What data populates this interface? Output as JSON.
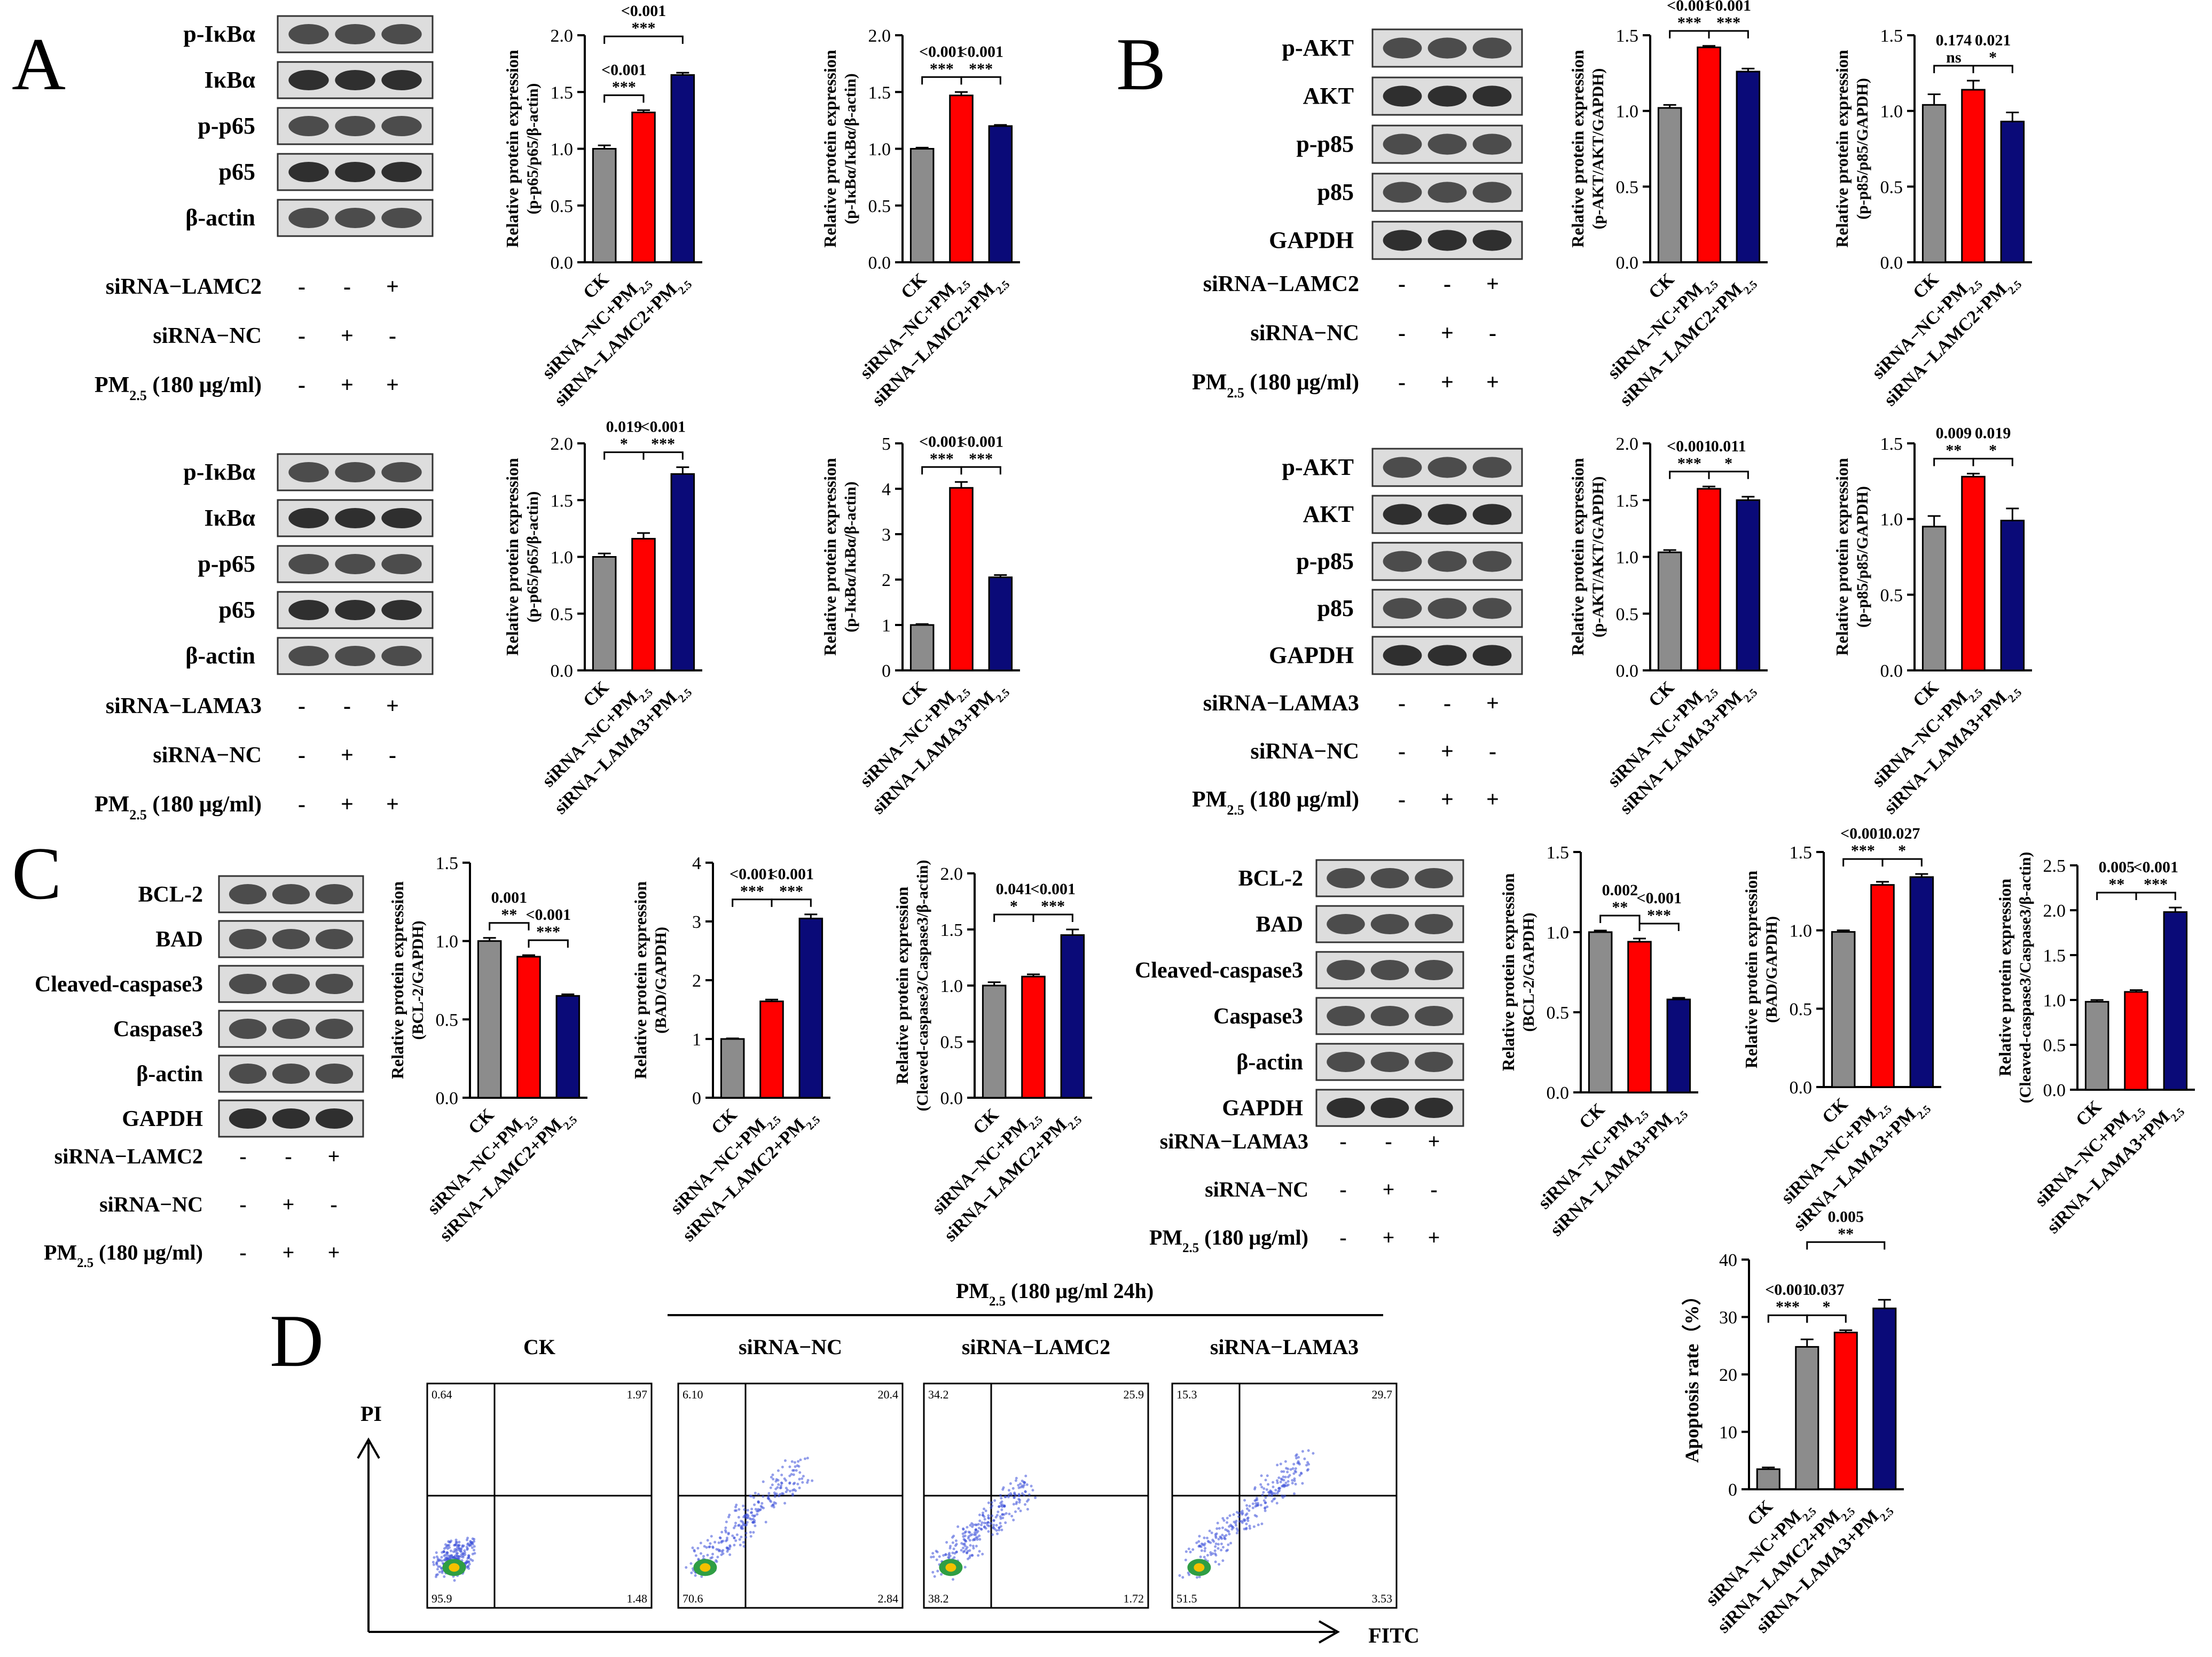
{
  "panels": {
    "A": "A",
    "B": "B",
    "C": "C",
    "D": "D"
  },
  "ylabel_prefix": "Relative protein expression",
  "categories_lamc2": [
    "CK",
    "siRNA−NC+PM2.5",
    "siRNA−LAMC2+PM2.5"
  ],
  "categories_lama3": [
    "CK",
    "siRNA−NC+PM2.5",
    "siRNA−LAMA3+PM2.5"
  ],
  "treatment_labels": {
    "lamc2": "siRNA−LAMC2",
    "lama3": "siRNA−LAMA3",
    "nc": "siRNA−NC",
    "pm": "PM2.5 (180 μg/ml)"
  },
  "signs": {
    "lamc2": [
      "-",
      "-",
      "+"
    ],
    "nc": [
      "-",
      "+",
      "-"
    ],
    "pm": [
      "-",
      "+",
      "+"
    ]
  },
  "colors": {
    "ck": "#8c8c8c",
    "nc": "#ff0000",
    "si": "#0a0a78"
  },
  "blots": {
    "A1": [
      "p-IκBα",
      "IκBα",
      "p-p65",
      "p65",
      "β-actin"
    ],
    "A2": [
      "p-IκBα",
      "IκBα",
      "p-p65",
      "p65",
      "β-actin"
    ],
    "B1": [
      "p-AKT",
      "AKT",
      "p-p85",
      "p85",
      "GAPDH"
    ],
    "B2": [
      "p-AKT",
      "AKT",
      "p-p85",
      "p85",
      "GAPDH"
    ],
    "C1": [
      "BCL-2",
      "BAD",
      "Cleaved-caspase3",
      "Caspase3",
      "β-actin",
      "GAPDH"
    ],
    "C2": [
      "BCL-2",
      "BAD",
      "Cleaved-caspase3",
      "Caspase3",
      "β-actin",
      "GAPDH"
    ]
  },
  "chart_data": [
    {
      "id": "A1a",
      "type": "bar",
      "ylabel": "(p-p65/p65/β-actin)",
      "categories_key": "lamc2",
      "values": [
        1.0,
        1.32,
        1.65
      ],
      "errors": [
        0.03,
        0.02,
        0.02
      ],
      "ylim": [
        0,
        2.0
      ],
      "ticks": [
        "0.0",
        "0.5",
        "1.0",
        "1.5",
        "2.0"
      ],
      "annotations": [
        {
          "from": 0,
          "to": 1,
          "p": "<0.001",
          "stars": "***"
        },
        {
          "from": 0,
          "to": 2,
          "p": "<0.001",
          "stars": "***"
        }
      ]
    },
    {
      "id": "A1b",
      "type": "bar",
      "ylabel": "(p-IκBα/IκBα/β-actin)",
      "categories_key": "lamc2",
      "values": [
        1.0,
        1.47,
        1.2
      ],
      "errors": [
        0.01,
        0.03,
        0.01
      ],
      "ylim": [
        0,
        2.0
      ],
      "ticks": [
        "0.0",
        "0.5",
        "1.0",
        "1.5",
        "2.0"
      ],
      "annotations": [
        {
          "from": 0,
          "to": 1,
          "p": "<0.001",
          "stars": "***"
        },
        {
          "from": 1,
          "to": 2,
          "p": "<0.001",
          "stars": "***"
        }
      ]
    },
    {
      "id": "A2a",
      "type": "bar",
      "ylabel": "(p-p65/p65/β-actin)",
      "categories_key": "lama3",
      "values": [
        1.0,
        1.16,
        1.73
      ],
      "errors": [
        0.03,
        0.05,
        0.06
      ],
      "ylim": [
        0,
        2.0
      ],
      "ticks": [
        "0.0",
        "0.5",
        "1.0",
        "1.5",
        "2.0"
      ],
      "annotations": [
        {
          "from": 0,
          "to": 1,
          "p": "0.019",
          "stars": "*"
        },
        {
          "from": 1,
          "to": 2,
          "p": "<0.001",
          "stars": "***"
        }
      ]
    },
    {
      "id": "A2b",
      "type": "bar",
      "ylabel": "(p-IκBα/IκBα/β-actin)",
      "categories_key": "lama3",
      "values": [
        1.0,
        4.02,
        2.05
      ],
      "errors": [
        0.02,
        0.13,
        0.05
      ],
      "ylim": [
        0,
        5
      ],
      "ticks": [
        "0",
        "1",
        "2",
        "3",
        "4",
        "5"
      ],
      "annotations": [
        {
          "from": 0,
          "to": 1,
          "p": "<0.001",
          "stars": "***"
        },
        {
          "from": 1,
          "to": 2,
          "p": "<0.001",
          "stars": "***"
        }
      ]
    },
    {
      "id": "B1a",
      "type": "bar",
      "ylabel": "(p-AKT/AKT/GAPDH)",
      "categories_key": "lamc2",
      "values": [
        1.02,
        1.42,
        1.26
      ],
      "errors": [
        0.02,
        0.01,
        0.02
      ],
      "ylim": [
        0,
        1.5
      ],
      "ticks": [
        "0.0",
        "0.5",
        "1.0",
        "1.5"
      ],
      "annotations": [
        {
          "from": 0,
          "to": 1,
          "p": "<0.001",
          "stars": "***"
        },
        {
          "from": 1,
          "to": 2,
          "p": "<0.001",
          "stars": "***"
        }
      ]
    },
    {
      "id": "B1b",
      "type": "bar",
      "ylabel": "(p-p85/p85/GAPDH)",
      "categories_key": "lamc2",
      "values": [
        1.04,
        1.14,
        0.93
      ],
      "errors": [
        0.07,
        0.06,
        0.06
      ],
      "ylim": [
        0,
        1.5
      ],
      "ticks": [
        "0.0",
        "0.5",
        "1.0",
        "1.5"
      ],
      "annotations": [
        {
          "from": 0,
          "to": 1,
          "p": "0.174",
          "stars": "ns"
        },
        {
          "from": 1,
          "to": 2,
          "p": "0.021",
          "stars": "*"
        }
      ]
    },
    {
      "id": "B2a",
      "type": "bar",
      "ylabel": "(p-AKT/AKT/GAPDH)",
      "categories_key": "lama3",
      "values": [
        1.04,
        1.6,
        1.5
      ],
      "errors": [
        0.02,
        0.02,
        0.03
      ],
      "ylim": [
        0,
        2.0
      ],
      "ticks": [
        "0.0",
        "0.5",
        "1.0",
        "1.5",
        "2.0"
      ],
      "annotations": [
        {
          "from": 0,
          "to": 1,
          "p": "<0.001",
          "stars": "***"
        },
        {
          "from": 1,
          "to": 2,
          "p": "0.011",
          "stars": "*"
        }
      ]
    },
    {
      "id": "B2b",
      "type": "bar",
      "ylabel": "(p-p85/p85/GAPDH)",
      "categories_key": "lama3",
      "values": [
        0.95,
        1.28,
        0.99
      ],
      "errors": [
        0.07,
        0.02,
        0.08
      ],
      "ylim": [
        0,
        1.5
      ],
      "ticks": [
        "0.0",
        "0.5",
        "1.0",
        "1.5"
      ],
      "annotations": [
        {
          "from": 0,
          "to": 1,
          "p": "0.009",
          "stars": "**"
        },
        {
          "from": 1,
          "to": 2,
          "p": "0.019",
          "stars": "*"
        }
      ]
    },
    {
      "id": "C1a",
      "type": "bar",
      "ylabel": "(BCL-2/GAPDH)",
      "categories_key": "lamc2",
      "values": [
        1.0,
        0.9,
        0.65
      ],
      "errors": [
        0.02,
        0.01,
        0.01
      ],
      "ylim": [
        0,
        1.5
      ],
      "ticks": [
        "0.0",
        "0.5",
        "1.0",
        "1.5"
      ],
      "annotations": [
        {
          "from": 0,
          "to": 1,
          "p": "0.001",
          "stars": "**"
        },
        {
          "from": 1,
          "to": 2,
          "p": "<0.001",
          "stars": "***"
        }
      ]
    },
    {
      "id": "C1b",
      "type": "bar",
      "ylabel": "(BAD/GAPDH)",
      "categories_key": "lamc2",
      "values": [
        1.0,
        1.64,
        3.05
      ],
      "errors": [
        0.01,
        0.03,
        0.07
      ],
      "ylim": [
        0,
        4
      ],
      "ticks": [
        "0",
        "1",
        "2",
        "3",
        "4"
      ],
      "annotations": [
        {
          "from": 0,
          "to": 1,
          "p": "<0.001",
          "stars": "***"
        },
        {
          "from": 1,
          "to": 2,
          "p": "<0.001",
          "stars": "***"
        }
      ]
    },
    {
      "id": "C1c",
      "type": "bar",
      "ylabel": "(Cleaved-caspase3/Caspase3/β-actin)",
      "categories_key": "lamc2",
      "values": [
        1.0,
        1.08,
        1.45
      ],
      "errors": [
        0.03,
        0.02,
        0.05
      ],
      "ylim": [
        0,
        2.0
      ],
      "ticks": [
        "0.0",
        "0.5",
        "1.0",
        "1.5",
        "2.0"
      ],
      "annotations": [
        {
          "from": 0,
          "to": 1,
          "p": "0.041",
          "stars": "*"
        },
        {
          "from": 1,
          "to": 2,
          "p": "<0.001",
          "stars": "***"
        }
      ]
    },
    {
      "id": "C2a",
      "type": "bar",
      "ylabel": "(BCL-2/GAPDH)",
      "categories_key": "lama3",
      "values": [
        1.0,
        0.94,
        0.58
      ],
      "errors": [
        0.01,
        0.02,
        0.01
      ],
      "ylim": [
        0,
        1.5
      ],
      "ticks": [
        "0.0",
        "0.5",
        "1.0",
        "1.5"
      ],
      "annotations": [
        {
          "from": 0,
          "to": 1,
          "p": "0.002",
          "stars": "**"
        },
        {
          "from": 1,
          "to": 2,
          "p": "<0.001",
          "stars": "***"
        }
      ]
    },
    {
      "id": "C2b",
      "type": "bar",
      "ylabel": "(BAD/GAPDH)",
      "categories_key": "lama3",
      "values": [
        0.99,
        1.29,
        1.34
      ],
      "errors": [
        0.01,
        0.02,
        0.02
      ],
      "ylim": [
        0,
        1.5
      ],
      "ticks": [
        "0.0",
        "0.5",
        "1.0",
        "1.5"
      ],
      "annotations": [
        {
          "from": 0,
          "to": 1,
          "p": "<0.001",
          "stars": "***"
        },
        {
          "from": 1,
          "to": 2,
          "p": "0.027",
          "stars": "*"
        }
      ]
    },
    {
      "id": "C2c",
      "type": "bar",
      "ylabel": "(Cleaved-caspase3/Caspase3/β-actin)",
      "categories_key": "lama3",
      "values": [
        0.98,
        1.09,
        1.98
      ],
      "errors": [
        0.02,
        0.02,
        0.05
      ],
      "ylim": [
        0,
        2.5
      ],
      "ticks": [
        "0.0",
        "0.5",
        "1.0",
        "1.5",
        "2.0",
        "2.5"
      ],
      "annotations": [
        {
          "from": 0,
          "to": 1,
          "p": "0.005",
          "stars": "**"
        },
        {
          "from": 1,
          "to": 2,
          "p": "<0.001",
          "stars": "***"
        }
      ]
    },
    {
      "id": "D",
      "type": "bar",
      "ylabel": "Apoptosis rate（%）",
      "categories": [
        "CK",
        "siRNA−NC+PM2.5",
        "siRNA−LAMC2+PM2.5",
        "siRNA−LAMA3+PM2.5"
      ],
      "values": [
        3.5,
        24.8,
        27.3,
        31.5
      ],
      "errors": [
        0.3,
        1.3,
        0.4,
        1.5
      ],
      "ylim": [
        0,
        40
      ],
      "ticks": [
        "0",
        "10",
        "20",
        "30",
        "40"
      ],
      "annotations": [
        {
          "from": 0,
          "to": 1,
          "p": "<0.001",
          "stars": "***"
        },
        {
          "from": 1,
          "to": 2,
          "p": "0.037",
          "stars": "*"
        },
        {
          "from": 1,
          "to": 3,
          "p": "0.005",
          "stars": "**"
        }
      ]
    }
  ],
  "flow": {
    "header": "PM2.5 (180 μg/ml 24h)",
    "titles": [
      "CK",
      "siRNA−NC",
      "siRNA−LAMC2",
      "siRNA−LAMA3"
    ],
    "quadrants": [
      {
        "q1": "0.64",
        "q2": "1.97",
        "q3": "1.48",
        "q4": "95.9"
      },
      {
        "q1": "6.10",
        "q2": "20.4",
        "q3": "2.84",
        "q4": "70.6"
      },
      {
        "q1": "34.2",
        "q2": "25.9",
        "q3": "1.72",
        "q4": "38.2"
      },
      {
        "q1": "15.3",
        "q2": "29.7",
        "q3": "3.53",
        "q4": "51.5"
      }
    ],
    "x_axis": "FITC",
    "y_axis": "PI"
  }
}
